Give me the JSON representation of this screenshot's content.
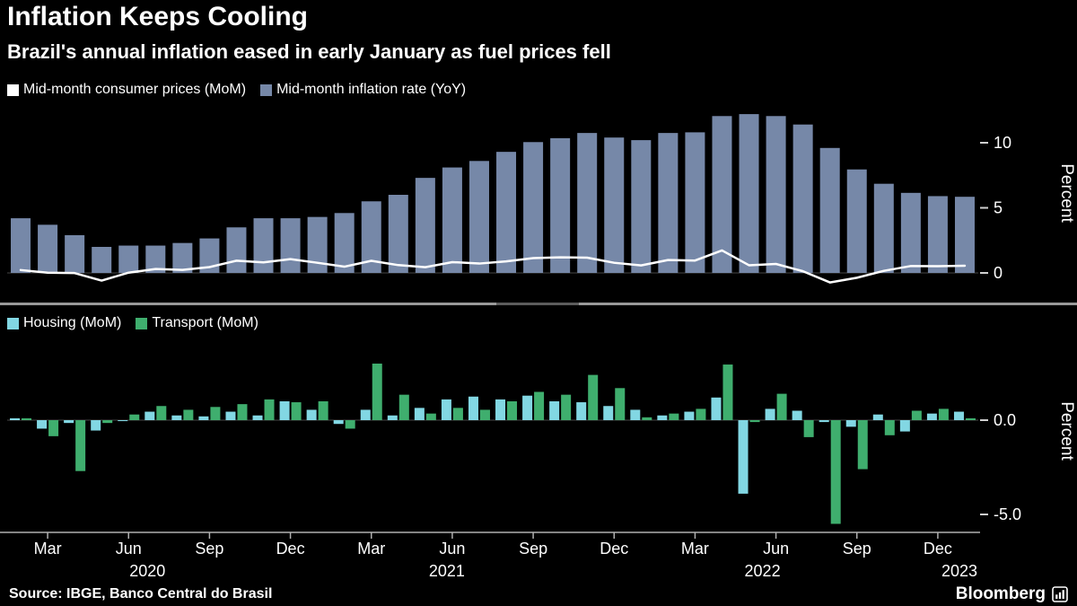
{
  "header": {
    "title": "Inflation Keeps Cooling",
    "subtitle": "Brazil's annual inflation eased in early January as fuel prices fell"
  },
  "footer": {
    "source": "Source: IBGE, Banco Central do Brasil",
    "brand": "Bloomberg"
  },
  "colors": {
    "background": "#000000",
    "yoy_bar": "#7688a8",
    "mom_line": "#ffffff",
    "housing_bar": "#82d7e3",
    "transport_bar": "#3fae6e",
    "axis_text": "#ffffff",
    "axis_line": "#b0b0b0",
    "divider": "#999999"
  },
  "chart_data": [
    {
      "type": "bar",
      "title": "Mid-month consumer prices and inflation rate",
      "legend": [
        {
          "label": "Mid-month consumer prices (MoM)",
          "swatch": "#ffffff"
        },
        {
          "label": "Mid-month inflation rate (YoY)",
          "swatch": "#7688a8"
        }
      ],
      "x": [
        "2020-02",
        "2020-03",
        "2020-04",
        "2020-05",
        "2020-06",
        "2020-07",
        "2020-08",
        "2020-09",
        "2020-10",
        "2020-11",
        "2020-12",
        "2021-01",
        "2021-02",
        "2021-03",
        "2021-04",
        "2021-05",
        "2021-06",
        "2021-07",
        "2021-08",
        "2021-09",
        "2021-10",
        "2021-11",
        "2021-12",
        "2022-01",
        "2022-02",
        "2022-03",
        "2022-04",
        "2022-05",
        "2022-06",
        "2022-07",
        "2022-08",
        "2022-09",
        "2022-10",
        "2022-11",
        "2022-12",
        "2023-01"
      ],
      "series": [
        {
          "name": "Mid-month inflation rate (YoY)",
          "type": "bar",
          "color": "#7688a8",
          "values": [
            4.2,
            3.7,
            2.9,
            2.0,
            2.1,
            2.1,
            2.3,
            2.65,
            3.5,
            4.2,
            4.2,
            4.3,
            4.6,
            5.5,
            6.0,
            7.3,
            8.1,
            8.6,
            9.3,
            10.05,
            10.35,
            10.75,
            10.4,
            10.2,
            10.75,
            10.8,
            12.05,
            12.2,
            12.05,
            11.4,
            9.6,
            7.95,
            6.85,
            6.15,
            5.9,
            5.85
          ]
        },
        {
          "name": "Mid-month consumer prices (MoM)",
          "type": "line",
          "color": "#ffffff",
          "values": [
            0.22,
            0.02,
            -0.01,
            -0.59,
            0.02,
            0.3,
            0.23,
            0.45,
            0.94,
            0.81,
            1.06,
            0.78,
            0.48,
            0.93,
            0.6,
            0.44,
            0.83,
            0.72,
            0.89,
            1.14,
            1.2,
            1.17,
            0.78,
            0.58,
            0.99,
            0.95,
            1.73,
            0.59,
            0.69,
            0.13,
            -0.73,
            -0.37,
            0.16,
            0.53,
            0.52,
            0.55
          ]
        }
      ],
      "xlabel": "",
      "ylabel": "Percent",
      "yticks": [
        0,
        5,
        10
      ],
      "ytick_labels": [
        "0",
        "5",
        "10"
      ],
      "ylim": [
        -1.5,
        13.2
      ],
      "grid": false,
      "legend_position": "top-left"
    },
    {
      "type": "bar",
      "title": "Housing and Transport monthly change",
      "legend": [
        {
          "label": "Housing (MoM)",
          "swatch": "#82d7e3"
        },
        {
          "label": "Transport (MoM)",
          "swatch": "#3fae6e"
        }
      ],
      "x": [
        "2020-02",
        "2020-03",
        "2020-04",
        "2020-05",
        "2020-06",
        "2020-07",
        "2020-08",
        "2020-09",
        "2020-10",
        "2020-11",
        "2020-12",
        "2021-01",
        "2021-02",
        "2021-03",
        "2021-04",
        "2021-05",
        "2021-06",
        "2021-07",
        "2021-08",
        "2021-09",
        "2021-10",
        "2021-11",
        "2021-12",
        "2022-01",
        "2022-02",
        "2022-03",
        "2022-04",
        "2022-05",
        "2022-06",
        "2022-07",
        "2022-08",
        "2022-09",
        "2022-10",
        "2022-11",
        "2022-12",
        "2023-01"
      ],
      "series": [
        {
          "name": "Housing (MoM)",
          "type": "bar",
          "color": "#82d7e3",
          "values": [
            0.1,
            -0.45,
            -0.15,
            -0.55,
            -0.05,
            0.45,
            0.25,
            0.2,
            0.45,
            0.25,
            1.0,
            0.55,
            -0.2,
            0.55,
            0.25,
            0.65,
            1.1,
            1.25,
            1.1,
            1.3,
            1.0,
            0.95,
            0.75,
            0.55,
            0.25,
            0.45,
            1.2,
            -3.9,
            0.6,
            0.5,
            -0.1,
            -0.35,
            0.3,
            -0.6,
            0.35,
            0.45
          ]
        },
        {
          "name": "Transport (MoM)",
          "type": "bar",
          "color": "#3fae6e",
          "values": [
            0.1,
            -0.85,
            -2.7,
            -0.15,
            0.3,
            0.75,
            0.55,
            0.7,
            0.85,
            1.1,
            0.95,
            1.0,
            -0.45,
            3.0,
            1.35,
            0.35,
            0.65,
            0.55,
            1.0,
            1.5,
            1.35,
            2.4,
            1.7,
            0.15,
            0.35,
            0.6,
            2.95,
            -0.1,
            1.4,
            -0.9,
            -5.5,
            -2.6,
            -0.8,
            0.5,
            0.6,
            0.1
          ]
        }
      ],
      "xlabel": "",
      "ylabel": "Percent",
      "yticks": [
        0,
        -5
      ],
      "ytick_labels": [
        "0.0",
        "-5.0"
      ],
      "ylim": [
        -6,
        4.8
      ],
      "grid": false,
      "legend_position": "top-left"
    }
  ],
  "xaxis": {
    "ticks": [
      {
        "i": 1,
        "label": "Mar"
      },
      {
        "i": 4,
        "label": "Jun"
      },
      {
        "i": 7,
        "label": "Sep"
      },
      {
        "i": 10,
        "label": "Dec"
      },
      {
        "i": 13,
        "label": "Mar"
      },
      {
        "i": 16,
        "label": "Jun"
      },
      {
        "i": 19,
        "label": "Sep"
      },
      {
        "i": 22,
        "label": "Dec"
      },
      {
        "i": 25,
        "label": "Mar"
      },
      {
        "i": 28,
        "label": "Jun"
      },
      {
        "i": 31,
        "label": "Sep"
      },
      {
        "i": 34,
        "label": "Dec"
      }
    ],
    "years": [
      {
        "i": 4.7,
        "label": "2020"
      },
      {
        "i": 15.8,
        "label": "2021"
      },
      {
        "i": 27.5,
        "label": "2022"
      },
      {
        "i": 34.8,
        "label": "2023"
      }
    ]
  }
}
